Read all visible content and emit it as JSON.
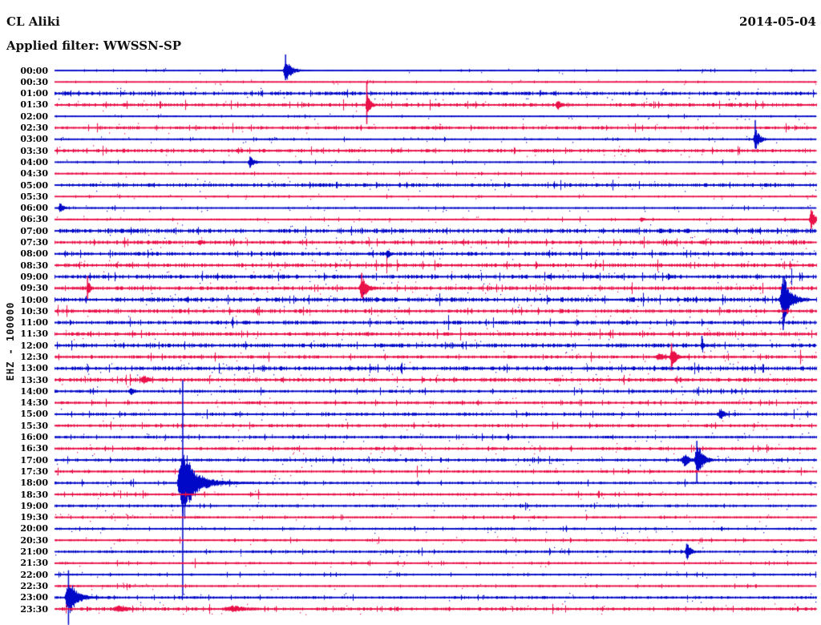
{
  "header": {
    "station": "CL Aliki",
    "filter_line": "Applied filter: WWSSN-SP",
    "date": "2014-05-04"
  },
  "y_axis_label": "EHZ - 100000",
  "colors": {
    "blue_trace": "#0008c8",
    "red_trace": "#ea1048",
    "text": "#111111",
    "background": "#ffffff"
  },
  "chart_data": {
    "type": "line",
    "subtype": "helicorder-seismogram",
    "title": "CL Aliki",
    "date": "2014-05-04",
    "filter": "WWSSN-SP",
    "channel_scale_label": "EHZ - 100000",
    "row_duration_minutes": 30,
    "x_range_minutes": [
      0,
      30
    ],
    "rows_start": "00:00",
    "rows_end": "23:30",
    "legend": "rows alternate blue (:00) and red (:30)",
    "traces": [
      {
        "t": "00:00",
        "c": "blue",
        "n": 0.7,
        "ev": [
          {
            "m": 9.1,
            "a": 13,
            "w": 6,
            "tail": 30,
            "s": [
              20,
              12
            ]
          }
        ]
      },
      {
        "t": "00:30",
        "c": "red",
        "n": 0.6,
        "ev": []
      },
      {
        "t": "01:00",
        "c": "blue",
        "n": 1.6,
        "ev": []
      },
      {
        "t": "01:30",
        "c": "red",
        "n": 1.6,
        "ev": [
          {
            "m": 12.3,
            "a": 12,
            "w": 4,
            "tail": 20,
            "s": [
              28,
              24
            ]
          },
          {
            "m": 19.8,
            "a": 6,
            "w": 5,
            "tail": 8
          }
        ]
      },
      {
        "t": "02:00",
        "c": "blue",
        "n": 0.7,
        "ev": []
      },
      {
        "t": "02:30",
        "c": "red",
        "n": 1.4,
        "ev": []
      },
      {
        "t": "03:00",
        "c": "blue",
        "n": 0.8,
        "ev": [
          {
            "m": 27.6,
            "a": 12,
            "w": 5,
            "tail": 15,
            "s": [
              24,
              11
            ]
          }
        ]
      },
      {
        "t": "03:30",
        "c": "red",
        "n": 1.5,
        "ev": []
      },
      {
        "t": "04:00",
        "c": "blue",
        "n": 0.8,
        "ev": [
          {
            "m": 7.7,
            "a": 6,
            "w": 6,
            "tail": 10,
            "s": [
              7,
              7
            ]
          }
        ]
      },
      {
        "t": "04:30",
        "c": "red",
        "n": 1.0,
        "ev": []
      },
      {
        "t": "05:00",
        "c": "blue",
        "n": 1.6,
        "ev": []
      },
      {
        "t": "05:30",
        "c": "red",
        "n": 0.7,
        "ev": []
      },
      {
        "t": "06:00",
        "c": "blue",
        "n": 0.8,
        "ev": [
          {
            "m": 0.2,
            "a": 7,
            "w": 4,
            "tail": 18
          }
        ]
      },
      {
        "t": "06:30",
        "c": "red",
        "n": 0.9,
        "ev": [
          {
            "m": 23.1,
            "a": 3,
            "w": 5,
            "tail": 6
          },
          {
            "m": 29.8,
            "a": 12,
            "w": 5,
            "tail": 4,
            "s": [
              12,
              12
            ]
          }
        ]
      },
      {
        "t": "07:00",
        "c": "blue",
        "n": 2.0,
        "ev": []
      },
      {
        "t": "07:30",
        "c": "red",
        "n": 1.7,
        "ev": [
          {
            "m": 5.7,
            "a": 4,
            "w": 6,
            "tail": 6
          }
        ]
      },
      {
        "t": "08:00",
        "c": "blue",
        "n": 1.7,
        "ev": [
          {
            "m": 13.1,
            "a": 5,
            "w": 5,
            "tail": 8
          }
        ]
      },
      {
        "t": "08:30",
        "c": "red",
        "n": 1.7,
        "ev": []
      },
      {
        "t": "09:00",
        "c": "blue",
        "n": 1.8,
        "ev": []
      },
      {
        "t": "09:30",
        "c": "red",
        "n": 1.7,
        "ev": [
          {
            "m": 1.3,
            "a": 12,
            "w": 2.5,
            "tail": 6,
            "s": [
              15,
              15
            ]
          },
          {
            "m": 12.1,
            "a": 14,
            "w": 6,
            "tail": 22,
            "s": [
              19,
              12
            ]
          }
        ]
      },
      {
        "t": "10:00",
        "c": "blue",
        "n": 2.0,
        "ev": [
          {
            "m": 28.7,
            "a": 29,
            "w": 8,
            "tail": 22,
            "s": [
              29,
              38
            ]
          }
        ]
      },
      {
        "t": "10:30",
        "c": "red",
        "n": 1.7,
        "ev": []
      },
      {
        "t": "11:00",
        "c": "blue",
        "n": 1.7,
        "ev": []
      },
      {
        "t": "11:30",
        "c": "red",
        "n": 1.7,
        "ev": []
      },
      {
        "t": "12:00",
        "c": "blue",
        "n": 1.8,
        "ev": [
          {
            "m": 25.5,
            "a": 11,
            "w": 1.5,
            "tail": 2,
            "s": [
              12,
              3
            ]
          }
        ]
      },
      {
        "t": "12:30",
        "c": "red",
        "n": 1.5,
        "ev": [
          {
            "m": 23.8,
            "a": 5,
            "w": 9,
            "tail": 2
          },
          {
            "m": 24.3,
            "a": 12,
            "w": 5,
            "tail": 18,
            "s": [
              17,
              17
            ]
          }
        ]
      },
      {
        "t": "13:00",
        "c": "blue",
        "n": 1.8,
        "ev": []
      },
      {
        "t": "13:30",
        "c": "red",
        "n": 1.7,
        "ev": [
          {
            "m": 3.5,
            "a": 5,
            "w": 11,
            "tail": 8
          }
        ]
      },
      {
        "t": "14:00",
        "c": "blue",
        "n": 1.4,
        "ev": [
          {
            "m": 3.0,
            "a": 5,
            "w": 5,
            "tail": 6
          }
        ]
      },
      {
        "t": "14:30",
        "c": "red",
        "n": 1.4,
        "ev": []
      },
      {
        "t": "15:00",
        "c": "blue",
        "n": 1.4,
        "ev": [
          {
            "m": 26.2,
            "a": 7,
            "w": 6,
            "tail": 8
          }
        ]
      },
      {
        "t": "15:30",
        "c": "red",
        "n": 1.4,
        "ev": []
      },
      {
        "t": "16:00",
        "c": "blue",
        "n": 1.2,
        "ev": []
      },
      {
        "t": "16:30",
        "c": "red",
        "n": 1.4,
        "ev": []
      },
      {
        "t": "17:00",
        "c": "blue",
        "n": 1.4,
        "ev": [
          {
            "m": 24.8,
            "a": 8,
            "w": 8,
            "tail": 2
          },
          {
            "m": 25.3,
            "a": 21,
            "w": 6,
            "tail": 18,
            "s": [
              24,
              28
            ]
          }
        ]
      },
      {
        "t": "17:30",
        "c": "red",
        "n": 1.2,
        "ev": []
      },
      {
        "t": "18:00",
        "c": "blue",
        "n": 1.2,
        "ev": [
          {
            "m": 5.05,
            "a": 45,
            "w": 11,
            "tail": 55,
            "s": [
              128,
              140
            ]
          }
        ]
      },
      {
        "t": "18:30",
        "c": "red",
        "n": 1.2,
        "ev": []
      },
      {
        "t": "19:00",
        "c": "blue",
        "n": 1.2,
        "ev": []
      },
      {
        "t": "19:30",
        "c": "red",
        "n": 1.0,
        "ev": []
      },
      {
        "t": "20:00",
        "c": "blue",
        "n": 1.1,
        "ev": []
      },
      {
        "t": "20:30",
        "c": "red",
        "n": 1.0,
        "ev": []
      },
      {
        "t": "21:00",
        "c": "blue",
        "n": 1.2,
        "ev": [
          {
            "m": 24.9,
            "a": 10,
            "w": 5,
            "tail": 10,
            "s": [
              10,
              8
            ]
          }
        ]
      },
      {
        "t": "21:30",
        "c": "red",
        "n": 1.0,
        "ev": []
      },
      {
        "t": "22:00",
        "c": "blue",
        "n": 1.0,
        "ev": []
      },
      {
        "t": "22:30",
        "c": "red",
        "n": 0.9,
        "ev": []
      },
      {
        "t": "23:00",
        "c": "blue",
        "n": 1.2,
        "ev": [
          {
            "m": 0.55,
            "a": 22,
            "w": 8,
            "tail": 35,
            "s": [
              34,
              34
            ]
          }
        ]
      },
      {
        "t": "23:30",
        "c": "red",
        "n": 1.5,
        "ev": [
          {
            "m": 2.5,
            "a": 4,
            "w": 18,
            "tail": 15
          },
          {
            "m": 7.0,
            "a": 4,
            "w": 25,
            "tail": 18
          }
        ]
      }
    ]
  }
}
